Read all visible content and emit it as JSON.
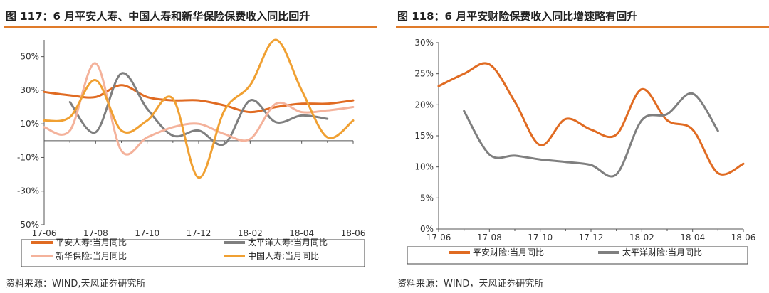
{
  "chart_data": [
    {
      "type": "line",
      "title": "图 117：6 月平安人寿、中国人寿和新华保险保费收入同比回升",
      "source": "资料来源：WIND,天风证券研究所",
      "xlabel": "",
      "ylabel": "",
      "x_ticks": [
        "17-06",
        "17-08",
        "17-10",
        "17-12",
        "18-02",
        "18-04",
        "18-06"
      ],
      "y_ticks": [
        "50%",
        "30%",
        "10%",
        "-10%",
        "-30%",
        "-50%"
      ],
      "ylim": [
        -50,
        60
      ],
      "xlim": [
        0,
        12
      ],
      "legend_position": "bottom",
      "series": [
        {
          "name": "平安人寿:当月同比",
          "color": "#e06b22",
          "x": [
            0,
            1,
            2,
            3,
            4,
            5,
            6,
            7,
            8,
            9,
            10,
            11,
            12
          ],
          "y": [
            29,
            27,
            26,
            33,
            26,
            24,
            24,
            21,
            17,
            20,
            22,
            22,
            24
          ]
        },
        {
          "name": "太平洋人寿:当月同比",
          "color": "#7f7f7f",
          "x": [
            1,
            2,
            3,
            4,
            5,
            6,
            7,
            8,
            9,
            10,
            11
          ],
          "y": [
            23,
            5,
            40,
            19,
            3,
            6,
            -2,
            24,
            11,
            15,
            13
          ]
        },
        {
          "name": "新华保险:当月同比",
          "color": "#f4b29b",
          "x": [
            0,
            1,
            2,
            3,
            4,
            5,
            6,
            7,
            8,
            9,
            10,
            11,
            12
          ],
          "y": [
            8,
            6,
            46,
            -6,
            2,
            8,
            10,
            4,
            1,
            22,
            17,
            18,
            20
          ]
        },
        {
          "name": "中国人寿:当月同比",
          "color": "#f0a032",
          "x": [
            0,
            1,
            2,
            3,
            4,
            5,
            6,
            7,
            8,
            9,
            10,
            11,
            12
          ],
          "y": [
            12,
            14,
            36,
            6,
            12,
            25,
            -22,
            18,
            33,
            60,
            30,
            2,
            12
          ]
        }
      ]
    },
    {
      "type": "line",
      "title": "图 118：6 月平安财险保费收入同比增速略有回升",
      "source": "资料来源：WIND，天风证券研究所",
      "xlabel": "",
      "ylabel": "",
      "x_ticks": [
        "17-06",
        "17-08",
        "17-10",
        "17-12",
        "18-02",
        "18-04",
        "18-06"
      ],
      "y_ticks": [
        "30%",
        "25%",
        "20%",
        "15%",
        "10%",
        "5%",
        "0%"
      ],
      "ylim": [
        0,
        30
      ],
      "xlim": [
        0,
        12
      ],
      "legend_position": "bottom",
      "series": [
        {
          "name": "平安财险:当月同比",
          "color": "#e06b22",
          "x": [
            0,
            1,
            2,
            3,
            4,
            5,
            6,
            7,
            8,
            9,
            10,
            11,
            12
          ],
          "y": [
            23,
            25,
            26.5,
            20.5,
            13.5,
            17.7,
            16,
            15.2,
            22.5,
            17.5,
            16,
            9,
            10.5
          ]
        },
        {
          "name": "太平洋财险:当月同比",
          "color": "#7f7f7f",
          "x": [
            1,
            2,
            3,
            4,
            5,
            6,
            7,
            8,
            9,
            10,
            11
          ],
          "y": [
            19,
            12,
            11.8,
            11.2,
            10.8,
            10.3,
            8.8,
            17.5,
            18.5,
            21.8,
            15.8
          ]
        }
      ]
    }
  ]
}
